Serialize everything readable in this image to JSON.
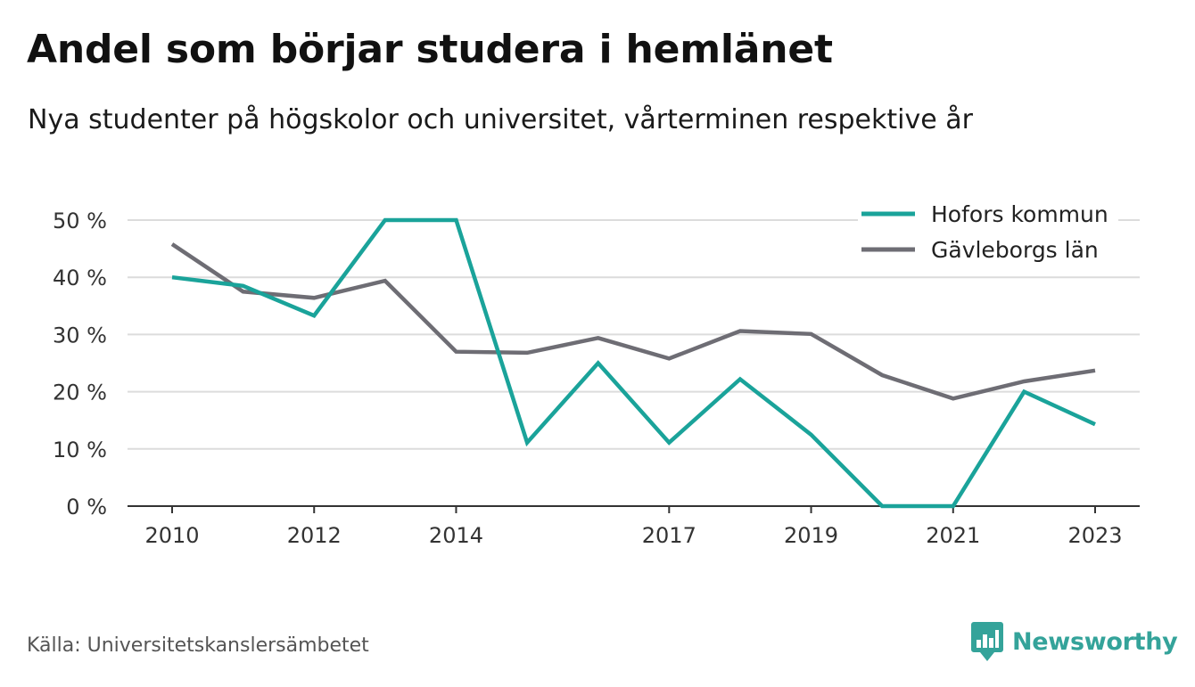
{
  "title": "Andel som börjar studera i hemlänet",
  "subtitle": "Nya studenter på högskolor och universitet, vårterminen respektive år",
  "source": "Källa: Universitetskanslersämbetet",
  "brand": "Newsworthy",
  "chart_data": {
    "type": "line",
    "x": [
      2010,
      2011,
      2012,
      2013,
      2014,
      2015,
      2016,
      2017,
      2018,
      2019,
      2020,
      2021,
      2022,
      2023
    ],
    "x_tick_labels": [
      "2010",
      "2012",
      "2014",
      "2017",
      "2019",
      "2021",
      "2023"
    ],
    "y_tick_labels": [
      "0 %",
      "10 %",
      "20 %",
      "30 %",
      "40 %",
      "50 %"
    ],
    "ylim": [
      0,
      50
    ],
    "grid": true,
    "legend_position": "top-right",
    "series": [
      {
        "name": "Hofors kommun",
        "color": "#1aa39a",
        "values": [
          40,
          38.5,
          33.3,
          50,
          50,
          11.1,
          25,
          11.1,
          22.2,
          12.5,
          0,
          0,
          20,
          14.3
        ]
      },
      {
        "name": "Gävleborgs län",
        "color": "#6e6d74",
        "values": [
          45.8,
          37.5,
          36.4,
          39.4,
          27,
          26.8,
          29.4,
          25.8,
          30.6,
          30.1,
          22.9,
          18.8,
          21.8,
          23.7
        ]
      }
    ]
  }
}
